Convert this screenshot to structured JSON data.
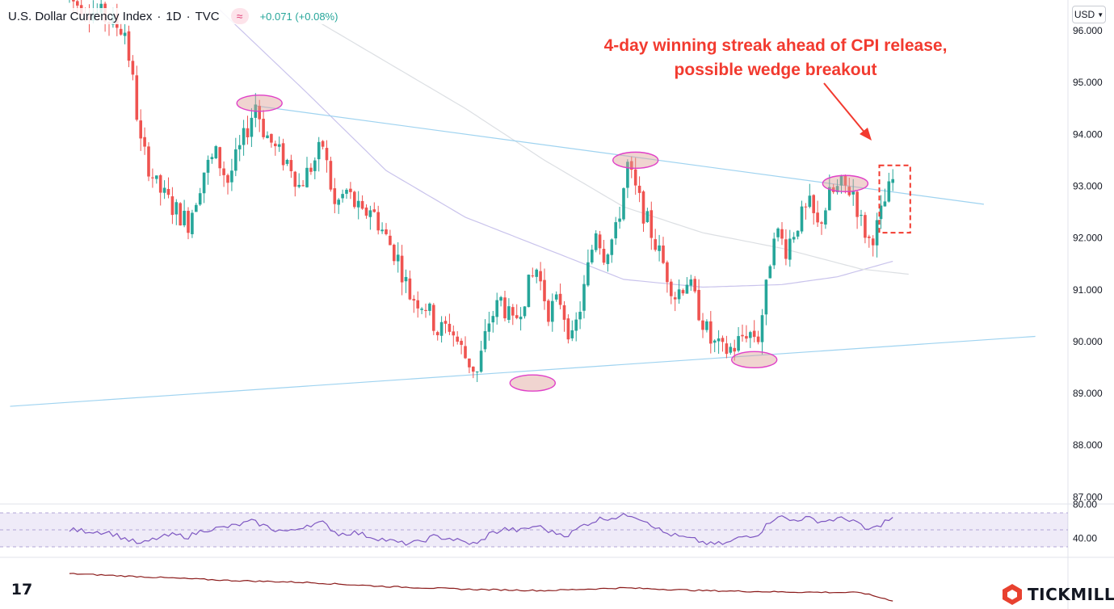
{
  "header": {
    "symbol": "U.S. Dollar Currency Index",
    "interval": "1D",
    "source": "TVC",
    "change": "+0.071 (+0.08%)"
  },
  "currency_button": {
    "label": "USD"
  },
  "annotation": {
    "line1": "4-day winning streak ahead of CPI release,",
    "line2": "possible wedge breakout"
  },
  "brand": {
    "name": "TICKMILL",
    "color": "#e8412f"
  },
  "colors": {
    "up": "#26a69a",
    "down": "#ef5350",
    "trendline": "#9fd3f0",
    "rsi": "#7e57c2",
    "annotation": "#f23a2f"
  },
  "chart_data": [
    {
      "type": "candlestick",
      "ylim": [
        86.8,
        96.3
      ],
      "y_ticks": [
        "96.000",
        "95.000",
        "94.000",
        "93.000",
        "92.000",
        "91.000",
        "90.000",
        "89.000",
        "88.000",
        "87.000"
      ],
      "anchors": [
        [
          0,
          96.6
        ],
        [
          8,
          96.3
        ],
        [
          14,
          96.0
        ],
        [
          16,
          95.0
        ],
        [
          18,
          93.8
        ],
        [
          22,
          93.0
        ],
        [
          26,
          92.6
        ],
        [
          30,
          92.3
        ],
        [
          34,
          93.3
        ],
        [
          37,
          93.6
        ],
        [
          40,
          93.1
        ],
        [
          44,
          93.9
        ],
        [
          47,
          94.6
        ],
        [
          49,
          94.1
        ],
        [
          52,
          93.7
        ],
        [
          56,
          93.4
        ],
        [
          58,
          93.0
        ],
        [
          62,
          93.5
        ],
        [
          64,
          93.8
        ],
        [
          67,
          92.6
        ],
        [
          70,
          92.9
        ],
        [
          74,
          92.4
        ],
        [
          76,
          92.6
        ],
        [
          80,
          92.0
        ],
        [
          83,
          91.6
        ],
        [
          86,
          90.9
        ],
        [
          90,
          90.7
        ],
        [
          93,
          90.2
        ],
        [
          96,
          90.3
        ],
        [
          100,
          89.7
        ],
        [
          103,
          89.4
        ],
        [
          106,
          90.4
        ],
        [
          109,
          90.8
        ],
        [
          112,
          90.3
        ],
        [
          115,
          90.9
        ],
        [
          118,
          91.4
        ],
        [
          121,
          90.6
        ],
        [
          124,
          90.8
        ],
        [
          127,
          90.0
        ],
        [
          130,
          91.0
        ],
        [
          133,
          92.2
        ],
        [
          135,
          91.7
        ],
        [
          138,
          92.1
        ],
        [
          141,
          93.4
        ],
        [
          143,
          92.9
        ],
        [
          146,
          92.3
        ],
        [
          150,
          91.5
        ],
        [
          153,
          90.9
        ],
        [
          156,
          91.2
        ],
        [
          159,
          90.6
        ],
        [
          162,
          90.0
        ],
        [
          165,
          89.8
        ],
        [
          168,
          89.9
        ],
        [
          171,
          90.2
        ],
        [
          174,
          90.1
        ],
        [
          176,
          91.0
        ],
        [
          178,
          92.2
        ],
        [
          181,
          91.8
        ],
        [
          184,
          92.3
        ],
        [
          187,
          92.6
        ],
        [
          189,
          92.2
        ],
        [
          192,
          92.8
        ],
        [
          195,
          93.0
        ],
        [
          198,
          92.9
        ],
        [
          200,
          92.3
        ],
        [
          202,
          91.95
        ],
        [
          204,
          92.2
        ],
        [
          206,
          92.7
        ],
        [
          208,
          93.1
        ]
      ],
      "trendlines": [
        {
          "name": "upper",
          "points": [
            [
              47,
              94.55
            ],
            [
              231,
              92.65
            ]
          ]
        },
        {
          "name": "lower",
          "points": [
            [
              -15,
              88.75
            ],
            [
              244,
              90.1
            ]
          ]
        }
      ],
      "moving_averages": [
        {
          "points": [
            [
              38,
              96.4
            ],
            [
              60,
              94.8
            ],
            [
              80,
              93.3
            ],
            [
              100,
              92.4
            ],
            [
              120,
              91.8
            ],
            [
              140,
              91.2
            ],
            [
              160,
              91.05
            ],
            [
              180,
              91.1
            ],
            [
              194,
              91.25
            ],
            [
              208,
              91.55
            ]
          ]
        },
        {
          "points": [
            [
              60,
              96.3
            ],
            [
              100,
              94.5
            ],
            [
              120,
              93.5
            ],
            [
              140,
              92.6
            ],
            [
              160,
              92.1
            ],
            [
              180,
              91.8
            ],
            [
              200,
              91.4
            ],
            [
              212,
              91.3
            ]
          ]
        }
      ],
      "highlighted_points": [
        [
          48,
          94.6
        ],
        [
          117,
          89.2
        ],
        [
          143,
          93.5
        ],
        [
          173,
          89.65
        ],
        [
          196,
          93.05
        ]
      ],
      "breakout_box": {
        "x": [
          205,
          212
        ],
        "y": [
          92.1,
          93.4
        ]
      }
    },
    {
      "type": "line",
      "name": "RSI",
      "ylim": [
        30,
        85
      ],
      "y_ticks": [
        "80.00",
        "40.00"
      ],
      "bands": [
        70,
        50,
        30
      ],
      "anchors": [
        [
          0,
          50
        ],
        [
          10,
          47
        ],
        [
          15,
          38
        ],
        [
          18,
          33
        ],
        [
          22,
          40
        ],
        [
          26,
          44
        ],
        [
          30,
          42
        ],
        [
          34,
          50
        ],
        [
          38,
          52
        ],
        [
          42,
          55
        ],
        [
          46,
          60
        ],
        [
          48,
          57
        ],
        [
          52,
          50
        ],
        [
          56,
          48
        ],
        [
          60,
          56
        ],
        [
          64,
          58
        ],
        [
          68,
          45
        ],
        [
          72,
          47
        ],
        [
          76,
          42
        ],
        [
          80,
          38
        ],
        [
          84,
          34
        ],
        [
          88,
          35
        ],
        [
          92,
          42
        ],
        [
          96,
          40
        ],
        [
          100,
          35
        ],
        [
          103,
          33
        ],
        [
          106,
          45
        ],
        [
          110,
          51
        ],
        [
          114,
          49
        ],
        [
          118,
          55
        ],
        [
          122,
          47
        ],
        [
          126,
          44
        ],
        [
          130,
          56
        ],
        [
          134,
          63
        ],
        [
          138,
          65
        ],
        [
          142,
          68
        ],
        [
          146,
          60
        ],
        [
          150,
          47
        ],
        [
          154,
          42
        ],
        [
          158,
          38
        ],
        [
          162,
          33
        ],
        [
          166,
          34
        ],
        [
          170,
          42
        ],
        [
          174,
          45
        ],
        [
          177,
          60
        ],
        [
          179,
          67
        ],
        [
          182,
          61
        ],
        [
          186,
          64
        ],
        [
          190,
          60
        ],
        [
          194,
          63
        ],
        [
          198,
          62
        ],
        [
          201,
          50
        ],
        [
          204,
          53
        ],
        [
          206,
          60
        ],
        [
          208,
          63
        ]
      ]
    },
    {
      "type": "line",
      "name": "lower-indicator",
      "ylim": [
        0,
        100
      ],
      "anchors": [
        [
          0,
          90
        ],
        [
          20,
          80
        ],
        [
          40,
          70
        ],
        [
          60,
          64
        ],
        [
          80,
          52
        ],
        [
          100,
          44
        ],
        [
          120,
          40
        ],
        [
          140,
          48
        ],
        [
          160,
          40
        ],
        [
          180,
          36
        ],
        [
          200,
          34
        ],
        [
          208,
          10
        ]
      ]
    }
  ]
}
